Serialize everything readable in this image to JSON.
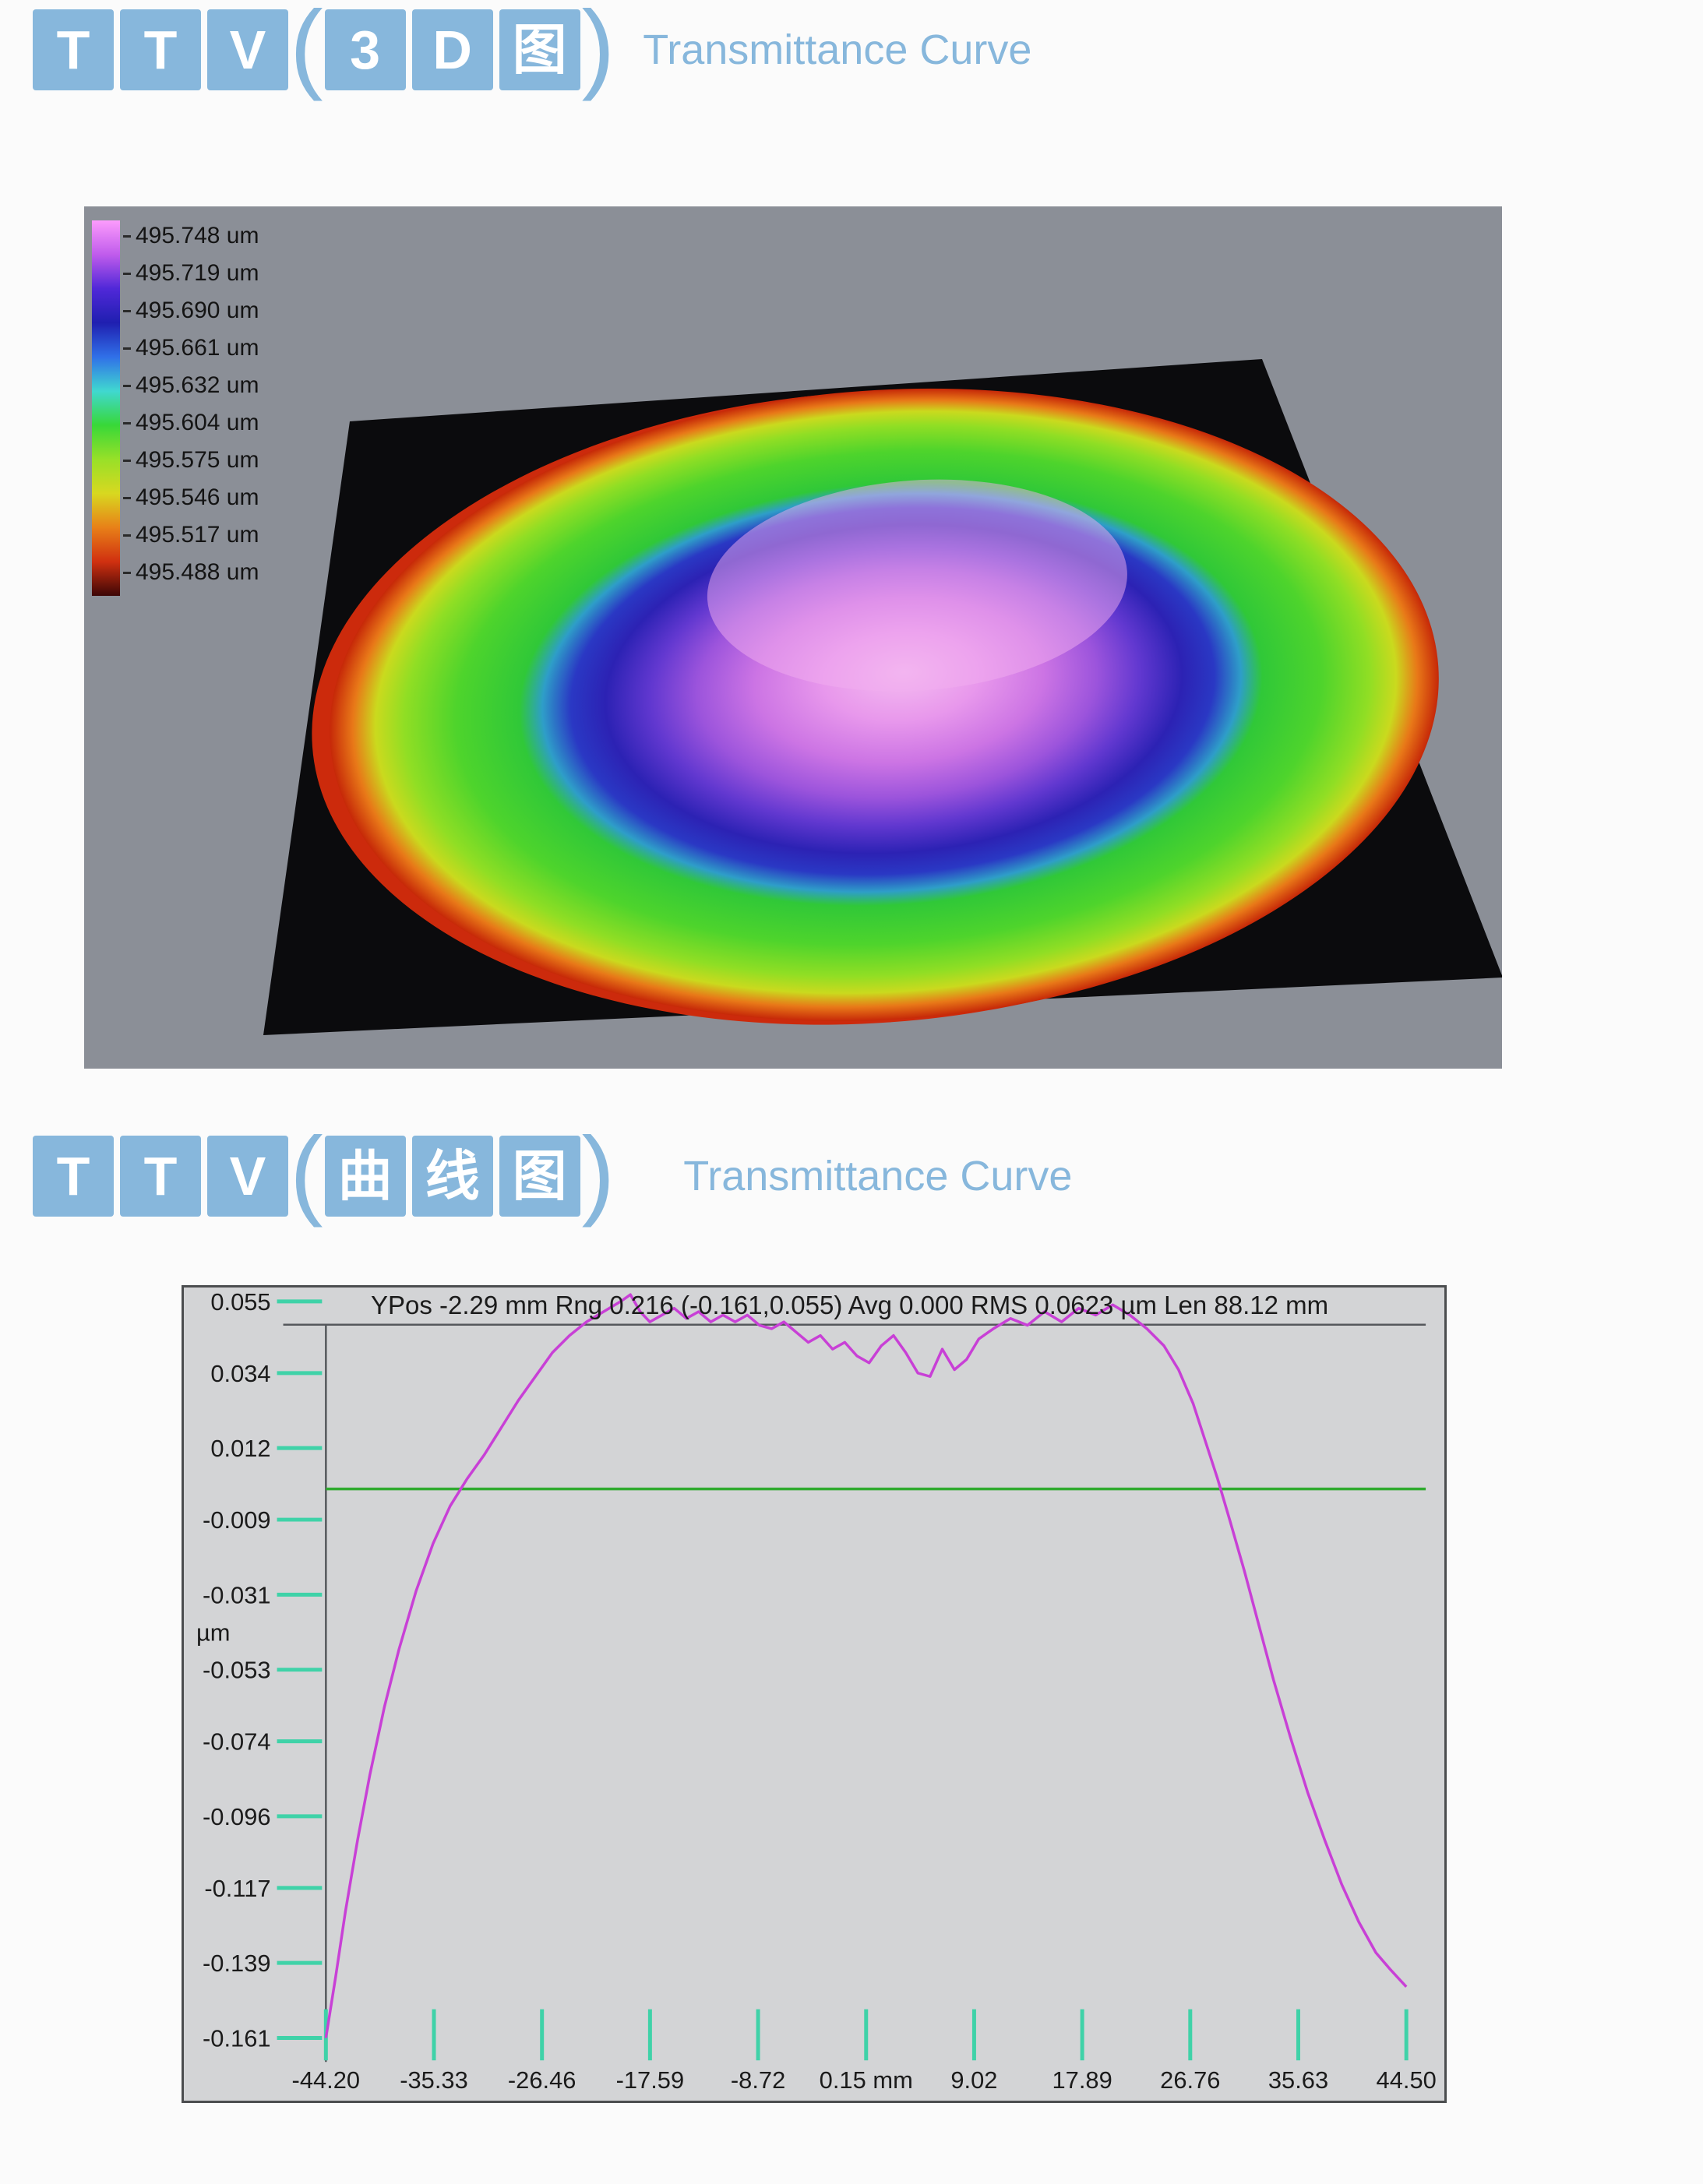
{
  "colors": {
    "accent_blue": "#87b7dc",
    "panel_gray": "#8b8f97",
    "chart_bg": "#d3d4d6",
    "chart_border": "#4b4d4f",
    "text_dark": "#1b1b1b"
  },
  "header1": {
    "letters": [
      "T",
      "T",
      "V"
    ],
    "open_paren": "(",
    "boxed": [
      "3",
      "D",
      "图"
    ],
    "close_paren": ")",
    "subtitle": "Transmittance Curve"
  },
  "header2": {
    "letters": [
      "T",
      "T",
      "V"
    ],
    "open_paren": "(",
    "boxed": [
      "曲",
      "线",
      "图"
    ],
    "close_paren": ")",
    "subtitle": "Transmittance Curve"
  },
  "surface_plot": {
    "panel_bg": "#8b8f97",
    "plane_color": "#0b0b0d",
    "rim_color": "#cc2a0c",
    "highlight_color": "#f2aef0",
    "legend_labels": [
      "495.748 um",
      "495.719 um",
      "495.690 um",
      "495.661 um",
      "495.632 um",
      "495.604 um",
      "495.575 um",
      "495.546 um",
      "495.517 um",
      "495.488 um"
    ],
    "colormap_bar": [
      "#fc9cfc",
      "#c05cec",
      "#5028d8",
      "#1f1fb0",
      "#3070e8",
      "#40d8d0",
      "#38d838",
      "#98e028",
      "#d8d820",
      "#e88018",
      "#d03010",
      "#3c0606"
    ],
    "disc_stops": [
      {
        "o": 0,
        "c": "#f4bcf0"
      },
      {
        "o": 14,
        "c": "#e898ec"
      },
      {
        "o": 26,
        "c": "#cc74e4"
      },
      {
        "o": 36,
        "c": "#9c54dc"
      },
      {
        "o": 44,
        "c": "#6238d0"
      },
      {
        "o": 52,
        "c": "#2c22b4"
      },
      {
        "o": 58,
        "c": "#2a38c4"
      },
      {
        "o": 63,
        "c": "#2e9ec8"
      },
      {
        "o": 67,
        "c": "#30c838"
      },
      {
        "o": 78,
        "c": "#4ed42c"
      },
      {
        "o": 87,
        "c": "#90de24"
      },
      {
        "o": 92,
        "c": "#cada1e"
      },
      {
        "o": 96,
        "c": "#e87818"
      },
      {
        "o": 100,
        "c": "#c62808"
      }
    ]
  },
  "chart_data": [
    {
      "type": "heatmap",
      "title": "TTV(3D图) Transmittance Curve",
      "legend_position": "left",
      "colorbar_labels_um": [
        495.748,
        495.719,
        495.69,
        495.661,
        495.632,
        495.604,
        495.575,
        495.546,
        495.517,
        495.488
      ],
      "zlim_um": [
        495.488,
        495.748
      ],
      "description": "3D false-color total-thickness-variation map of a circular wafer on a black base plane: magenta/pink center (high ~495.75 um), purple and dark-blue ring, broad green ring, red/orange rim (low ~495.49 um), small gray notch at the bottom edge"
    },
    {
      "type": "line",
      "header": "YPos -2.29 mm Rng 0.216 (-0.161,0.055) Avg 0.000 RMS 0.0623 µm Len 88.12 mm",
      "ylabel": "µm",
      "ylabel_pos": -0.042,
      "ytick_labels": [
        "0.055",
        "0.034",
        "0.012",
        "-0.009",
        "-0.031",
        "-0.053",
        "-0.074",
        "-0.096",
        "-0.117",
        "-0.139",
        "-0.161"
      ],
      "xtick_labels": [
        "-44.20",
        "-35.33",
        "-26.46",
        "-17.59",
        "-8.72",
        "0.15 mm",
        "9.02",
        "17.89",
        "26.76",
        "35.63",
        "44.50"
      ],
      "xlim": [
        -44.2,
        44.5
      ],
      "ylim": [
        -0.161,
        0.055
      ],
      "grid": false,
      "avg_line": 0.0,
      "avg_color": "#2faa2f",
      "tick_color": "#3fd2a8",
      "series": [
        {
          "name": "surface profile",
          "color": "#c840d6",
          "points": [
            [
              -44.2,
              -0.161
            ],
            [
              -43.4,
              -0.143
            ],
            [
              -42.6,
              -0.124
            ],
            [
              -41.6,
              -0.103
            ],
            [
              -40.6,
              -0.084
            ],
            [
              -39.4,
              -0.064
            ],
            [
              -38.2,
              -0.047
            ],
            [
              -36.8,
              -0.03
            ],
            [
              -35.4,
              -0.016
            ],
            [
              -34.0,
              -0.005
            ],
            [
              -32.6,
              0.003
            ],
            [
              -31.2,
              0.01
            ],
            [
              -29.8,
              0.018
            ],
            [
              -28.4,
              0.026
            ],
            [
              -27.0,
              0.033
            ],
            [
              -25.6,
              0.04
            ],
            [
              -24.2,
              0.045
            ],
            [
              -22.8,
              0.049
            ],
            [
              -21.4,
              0.052
            ],
            [
              -20.0,
              0.055
            ],
            [
              -19.2,
              0.057
            ],
            [
              -18.4,
              0.052
            ],
            [
              -17.6,
              0.049
            ],
            [
              -16.6,
              0.051
            ],
            [
              -15.6,
              0.053
            ],
            [
              -14.6,
              0.05
            ],
            [
              -13.6,
              0.052
            ],
            [
              -12.6,
              0.049
            ],
            [
              -11.6,
              0.051
            ],
            [
              -10.6,
              0.049
            ],
            [
              -9.6,
              0.051
            ],
            [
              -8.6,
              0.048
            ],
            [
              -7.6,
              0.047
            ],
            [
              -6.6,
              0.049
            ],
            [
              -5.6,
              0.046
            ],
            [
              -4.6,
              0.043
            ],
            [
              -3.6,
              0.045
            ],
            [
              -2.6,
              0.041
            ],
            [
              -1.6,
              0.043
            ],
            [
              -0.6,
              0.039
            ],
            [
              0.4,
              0.037
            ],
            [
              1.4,
              0.042
            ],
            [
              2.4,
              0.045
            ],
            [
              3.4,
              0.04
            ],
            [
              4.4,
              0.034
            ],
            [
              5.4,
              0.033
            ],
            [
              6.4,
              0.041
            ],
            [
              7.4,
              0.035
            ],
            [
              8.4,
              0.038
            ],
            [
              9.4,
              0.044
            ],
            [
              10.6,
              0.047
            ],
            [
              12.0,
              0.05
            ],
            [
              13.4,
              0.048
            ],
            [
              14.8,
              0.052
            ],
            [
              16.2,
              0.049
            ],
            [
              17.6,
              0.053
            ],
            [
              19.0,
              0.051
            ],
            [
              20.4,
              0.054
            ],
            [
              21.8,
              0.051
            ],
            [
              23.2,
              0.047
            ],
            [
              24.6,
              0.042
            ],
            [
              25.8,
              0.035
            ],
            [
              27.0,
              0.025
            ],
            [
              28.0,
              0.014
            ],
            [
              29.0,
              0.003
            ],
            [
              30.0,
              -0.009
            ],
            [
              31.2,
              -0.024
            ],
            [
              32.4,
              -0.04
            ],
            [
              33.6,
              -0.056
            ],
            [
              35.0,
              -0.073
            ],
            [
              36.4,
              -0.089
            ],
            [
              37.8,
              -0.103
            ],
            [
              39.2,
              -0.116
            ],
            [
              40.6,
              -0.127
            ],
            [
              42.0,
              -0.136
            ],
            [
              43.2,
              -0.141
            ],
            [
              44.5,
              -0.146
            ]
          ]
        }
      ]
    }
  ]
}
